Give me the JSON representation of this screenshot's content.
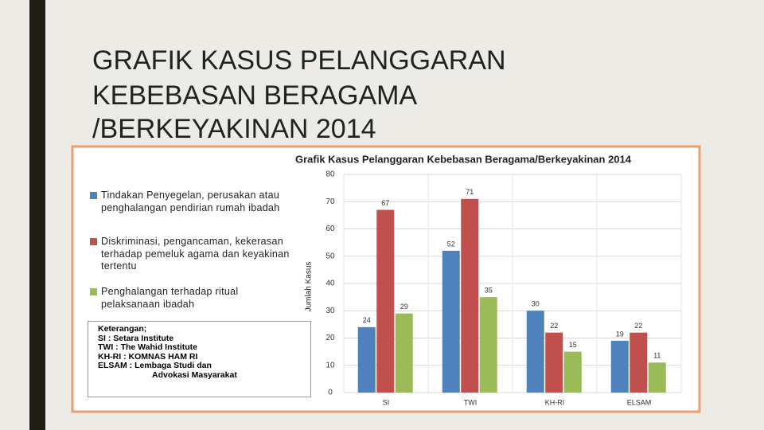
{
  "slide": {
    "title_lines": [
      "GRAFIK KASUS PELANGGARAN",
      "KEBEBASAN BERAGAMA",
      "/BERKEYAKINAN 2014"
    ]
  },
  "chart_data": {
    "type": "bar",
    "title": "Grafik Kasus Pelanggaran Kebebasan Beragama/Berkeyakinan 2014",
    "y_label": "Jumlah Kasus",
    "categories": [
      "SI",
      "TWI",
      "KH-RI",
      "ELSAM"
    ],
    "series": [
      {
        "name": "Tindakan Penyegelan, perusakan atau penghalangan pendirian rumah ibadah",
        "color": "#4f81bd",
        "values": [
          24,
          52,
          30,
          19
        ]
      },
      {
        "name": "Diskriminasi, pengancaman, kekerasan terhadap pemeluk agama dan keyakinan tertentu",
        "color": "#c0504d",
        "values": [
          67,
          71,
          22,
          22
        ]
      },
      {
        "name": "Penghalangan terhadap ritual pelaksanaan ibadah",
        "color": "#9bbb59",
        "values": [
          29,
          35,
          15,
          11
        ]
      }
    ],
    "ylim": [
      0,
      80
    ],
    "yticks": [
      0,
      10,
      20,
      30,
      40,
      50,
      60,
      70,
      80
    ],
    "grid": true,
    "notes": [
      "Keterangan;",
      "SI : Setara Institute",
      "TWI : The Wahid Institute",
      "KH-RI : KOMNAS HAM RI",
      "ELSAM : Lembaga Studi dan",
      "Advokasi Masyarakat"
    ]
  }
}
